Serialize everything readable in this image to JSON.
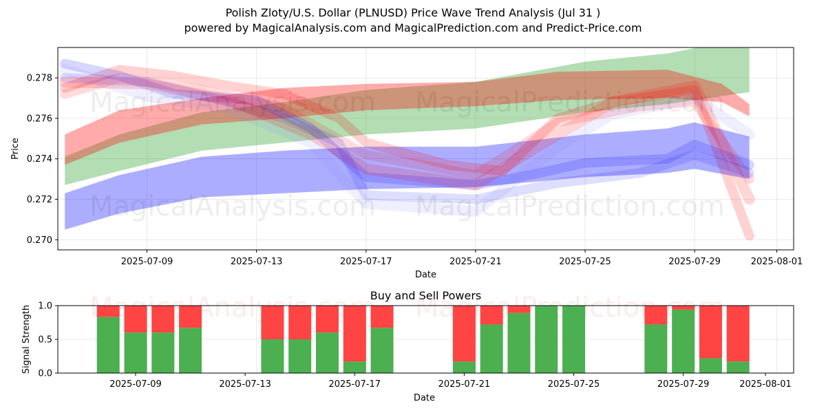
{
  "titles": {
    "line1": "Polish Zloty/U.S. Dollar (PLNUSD) Price Wave Trend Analysis (Jul 31 )",
    "line2": "powered by MagicalAnalysis.com and MagicalPrediction.com and Predict-Price.com"
  },
  "watermarks": [
    "MagicalAnalysis.com",
    "MagicalPrediction.com"
  ],
  "chart_data": [
    {
      "type": "area",
      "title": "Polish Zloty/U.S. Dollar (PLNUSD) Price Wave Trend Analysis (Jul 31 )",
      "xlabel": "Date",
      "ylabel": "Price",
      "xlim": [
        "2025-07-05",
        "2025-08-01"
      ],
      "ylim": [
        0.2695,
        0.2795
      ],
      "grid": true,
      "xticks": [
        "2025-07-09",
        "2025-07-13",
        "2025-07-17",
        "2025-07-21",
        "2025-07-25",
        "2025-07-29",
        "2025-08-01"
      ],
      "yticks": [
        0.27,
        0.272,
        0.274,
        0.276,
        0.278
      ],
      "ytick_labels": [
        "0.270",
        "0.272",
        "0.274",
        "0.276",
        "0.278"
      ],
      "bands": [
        {
          "name": "green trend band",
          "color": "#2ca02c",
          "opacity": 0.36,
          "x": [
            "2025-07-06",
            "2025-07-08",
            "2025-07-11",
            "2025-07-14",
            "2025-07-17",
            "2025-07-21",
            "2025-07-25",
            "2025-07-28",
            "2025-07-31"
          ],
          "upper": [
            0.2741,
            0.2752,
            0.2763,
            0.2768,
            0.2774,
            0.2778,
            0.2788,
            0.2792,
            0.28
          ],
          "lower": [
            0.2727,
            0.2734,
            0.2744,
            0.2748,
            0.2752,
            0.2755,
            0.2763,
            0.2767,
            0.2773
          ]
        },
        {
          "name": "red trend band",
          "color": "#ff0000",
          "opacity": 0.33,
          "x": [
            "2025-07-06",
            "2025-07-08",
            "2025-07-11",
            "2025-07-14",
            "2025-07-17",
            "2025-07-21",
            "2025-07-24",
            "2025-07-28",
            "2025-07-30",
            "2025-07-31"
          ],
          "upper": [
            0.2752,
            0.2764,
            0.277,
            0.2775,
            0.2777,
            0.2778,
            0.2783,
            0.2784,
            0.2777,
            0.2767
          ],
          "lower": [
            0.2737,
            0.2748,
            0.2757,
            0.276,
            0.2764,
            0.2766,
            0.2769,
            0.277,
            0.2768,
            0.2761
          ]
        },
        {
          "name": "blue trend band",
          "color": "#0000ff",
          "opacity": 0.32,
          "x": [
            "2025-07-06",
            "2025-07-08",
            "2025-07-11",
            "2025-07-14",
            "2025-07-17",
            "2025-07-21",
            "2025-07-25",
            "2025-07-28",
            "2025-07-29",
            "2025-07-31"
          ],
          "upper": [
            0.2723,
            0.2732,
            0.2741,
            0.2744,
            0.2746,
            0.2746,
            0.2752,
            0.2755,
            0.2758,
            0.2751
          ],
          "lower": [
            0.2705,
            0.2713,
            0.2721,
            0.2723,
            0.2725,
            0.2726,
            0.2731,
            0.2733,
            0.2735,
            0.273
          ]
        }
      ],
      "waves": [
        {
          "color": "#ff0000",
          "opacity": 0.18,
          "width": 14,
          "x": [
            "2025-07-06",
            "2025-07-08",
            "2025-07-10",
            "2025-07-12",
            "2025-07-14",
            "2025-07-16",
            "2025-07-17",
            "2025-07-20",
            "2025-07-22",
            "2025-07-24",
            "2025-07-26",
            "2025-07-29",
            "2025-07-31"
          ],
          "y": [
            0.2775,
            0.2784,
            0.2781,
            0.2776,
            0.2772,
            0.276,
            0.2748,
            0.2737,
            0.2734,
            0.276,
            0.2768,
            0.2774,
            0.2702
          ]
        },
        {
          "color": "#ff0000",
          "opacity": 0.14,
          "width": 14,
          "x": [
            "2025-07-06",
            "2025-07-08",
            "2025-07-11",
            "2025-07-14",
            "2025-07-17",
            "2025-07-21",
            "2025-07-24",
            "2025-07-27",
            "2025-07-29",
            "2025-07-31"
          ],
          "y": [
            0.2772,
            0.278,
            0.2774,
            0.2765,
            0.2742,
            0.2732,
            0.2758,
            0.2766,
            0.2768,
            0.273
          ]
        },
        {
          "color": "#0000ff",
          "opacity": 0.16,
          "width": 14,
          "x": [
            "2025-07-06",
            "2025-07-08",
            "2025-07-10",
            "2025-07-13",
            "2025-07-15",
            "2025-07-17",
            "2025-07-21",
            "2025-07-23",
            "2025-07-25",
            "2025-07-28",
            "2025-07-29",
            "2025-07-31"
          ],
          "y": [
            0.2787,
            0.2781,
            0.2772,
            0.2769,
            0.2755,
            0.2731,
            0.2727,
            0.2732,
            0.2738,
            0.274,
            0.2747,
            0.2737
          ]
        },
        {
          "color": "#0000ff",
          "opacity": 0.13,
          "width": 14,
          "x": [
            "2025-07-06",
            "2025-07-09",
            "2025-07-12",
            "2025-07-14",
            "2025-07-16",
            "2025-07-17",
            "2025-07-21",
            "2025-07-24",
            "2025-07-27",
            "2025-07-29",
            "2025-07-31"
          ],
          "y": [
            0.278,
            0.2778,
            0.2768,
            0.276,
            0.2748,
            0.2722,
            0.272,
            0.2728,
            0.2733,
            0.2742,
            0.2733
          ]
        },
        {
          "color": "#8080ff",
          "opacity": 0.13,
          "width": 16,
          "x": [
            "2025-07-06",
            "2025-07-09",
            "2025-07-12",
            "2025-07-15",
            "2025-07-17",
            "2025-07-21",
            "2025-07-24",
            "2025-07-26",
            "2025-07-29",
            "2025-07-31"
          ],
          "y": [
            0.2784,
            0.2771,
            0.2765,
            0.2748,
            0.2718,
            0.2714,
            0.2746,
            0.2762,
            0.277,
            0.2752
          ]
        },
        {
          "color": "#ff0000",
          "opacity": 0.16,
          "width": 16,
          "x": [
            "2025-07-06",
            "2025-07-09",
            "2025-07-12",
            "2025-07-15",
            "2025-07-17",
            "2025-07-21",
            "2025-07-24",
            "2025-07-26",
            "2025-07-29",
            "2025-07-31"
          ],
          "y": [
            0.2778,
            0.2777,
            0.2769,
            0.2752,
            0.2735,
            0.2727,
            0.2752,
            0.2768,
            0.2776,
            0.272
          ]
        }
      ]
    },
    {
      "type": "bar",
      "title": "Buy and Sell Powers",
      "xlabel": "Date",
      "ylabel": "Signal Strength",
      "ylim": [
        0,
        1
      ],
      "yticks": [
        0.0,
        0.5,
        1.0
      ],
      "ytick_labels": [
        "0.0",
        "0.5",
        "1.0"
      ],
      "xticks": [
        "2025-07-09",
        "2025-07-13",
        "2025-07-17",
        "2025-07-21",
        "2025-07-25",
        "2025-07-29",
        "2025-08-01"
      ],
      "grid": true,
      "series": [
        {
          "name": "Buy",
          "color": "#4caf50"
        },
        {
          "name": "Sell",
          "color": "#ff4444"
        }
      ],
      "categories": [
        "2025-07-08",
        "2025-07-09",
        "2025-07-10",
        "2025-07-11",
        "2025-07-14",
        "2025-07-15",
        "2025-07-16",
        "2025-07-17",
        "2025-07-18",
        "2025-07-21",
        "2025-07-22",
        "2025-07-23",
        "2025-07-24",
        "2025-07-25",
        "2025-07-28",
        "2025-07-29",
        "2025-07-30",
        "2025-07-31"
      ],
      "buy": [
        0.83,
        0.6,
        0.6,
        0.67,
        0.5,
        0.5,
        0.6,
        0.17,
        0.67,
        0.17,
        0.72,
        0.89,
        1.0,
        1.0,
        0.72,
        0.94,
        0.22,
        0.17
      ]
    }
  ]
}
